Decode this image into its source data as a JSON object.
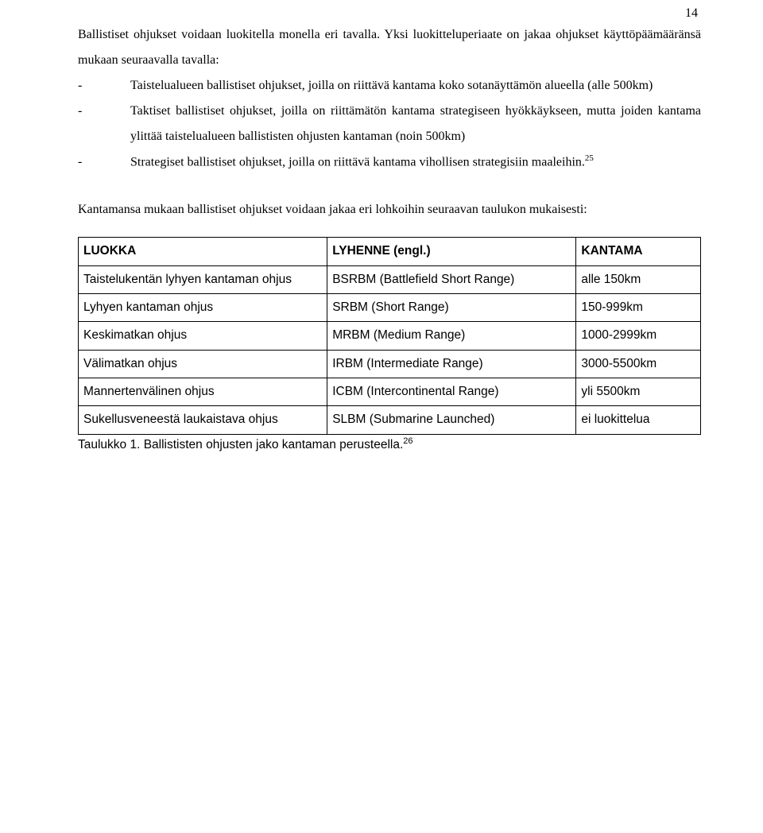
{
  "page_number": "14",
  "intro": "Ballistiset ohjukset voidaan luokitella monella eri tavalla. Yksi luokitteluperiaate on jakaa ohjukset käyttöpäämääränsä mukaan seuraavalla tavalla:",
  "bullets": [
    "Taistelualueen ballistiset ohjukset, joilla on riittävä kantama koko sotanäyttämön alueella (alle 500km)",
    "Taktiset ballistiset ohjukset, joilla on riittämätön kantama strategiseen hyökkäykseen, mutta joiden kantama ylittää taistelualueen ballististen ohjusten kantaman (noin 500km)",
    "Strategiset ballistiset ohjukset, joilla on riittävä kantama vihollisen strategisiin maaleihin."
  ],
  "footnote_25": "25",
  "second_para": "Kantamansa mukaan ballistiset ohjukset voidaan jakaa eri lohkoihin seuraavan taulukon mukaisesti:",
  "table": {
    "headers": [
      "LUOKKA",
      "LYHENNE (engl.)",
      "KANTAMA"
    ],
    "rows": [
      [
        "Taistelukentän lyhyen kantaman ohjus",
        "BSRBM (Battlefield Short Range)",
        "alle 150km"
      ],
      [
        "Lyhyen kantaman ohjus",
        "SRBM (Short Range)",
        "150-999km"
      ],
      [
        "Keskimatkan ohjus",
        "MRBM (Medium Range)",
        "1000-2999km"
      ],
      [
        "Välimatkan ohjus",
        "IRBM (Intermediate Range)",
        "3000-5500km"
      ],
      [
        "Mannertenvälinen ohjus",
        "ICBM (Intercontinental Range)",
        "yli 5500km"
      ],
      [
        "Sukellusveneestä laukaistava ohjus",
        "SLBM (Submarine Launched)",
        "ei luokittelua"
      ]
    ]
  },
  "caption_text": "Taulukko 1. Ballististen ohjusten jako kantaman perusteella.",
  "footnote_26": "26"
}
